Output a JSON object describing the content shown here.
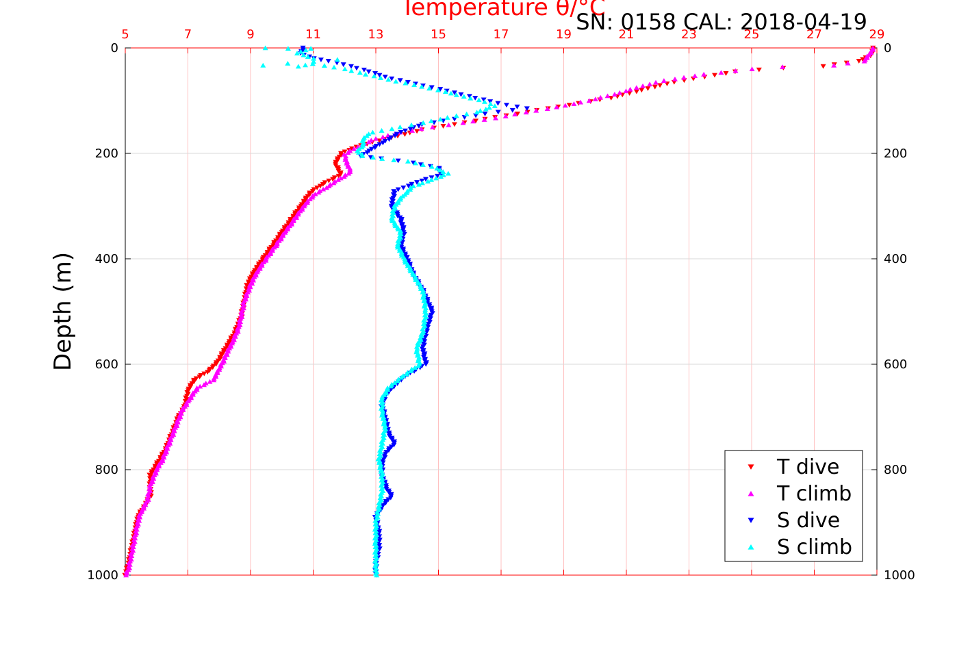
{
  "chart_data": {
    "type": "scatter",
    "title": "Temperature θ/°C",
    "subtitle": "SN: 0158  CAL: 2018-04-19",
    "xlabel": "Temperature θ/°C",
    "ylabel": "Depth (m)",
    "xlim": [
      5,
      29
    ],
    "ylim": [
      0,
      1000
    ],
    "y_reversed": true,
    "x_ticks": [
      5,
      7,
      9,
      11,
      13,
      15,
      17,
      19,
      21,
      23,
      25,
      27,
      29
    ],
    "y_ticks": [
      0,
      200,
      400,
      600,
      800,
      1000
    ],
    "grid": true,
    "legend_position": "bottom-right",
    "colors": {
      "axis_top": "#ff0000",
      "grid_x": "#ffc0c0",
      "grid_y": "#d9d9d9"
    },
    "series": [
      {
        "name": "T dive",
        "color": "#ff0000",
        "marker": "triangle-down",
        "points": [
          [
            28.9,
            0
          ],
          [
            28.8,
            15
          ],
          [
            28.4,
            25
          ],
          [
            27.3,
            35
          ],
          [
            26.0,
            38
          ],
          [
            24.5,
            45
          ],
          [
            23.5,
            55
          ],
          [
            22.5,
            65
          ],
          [
            21.5,
            80
          ],
          [
            20.5,
            95
          ],
          [
            19.5,
            105
          ],
          [
            18.5,
            115
          ],
          [
            17.5,
            125
          ],
          [
            16.5,
            135
          ],
          [
            15.5,
            145
          ],
          [
            14.5,
            155
          ],
          [
            13.5,
            170
          ],
          [
            12.5,
            185
          ],
          [
            11.9,
            200
          ],
          [
            11.7,
            220
          ],
          [
            11.9,
            240
          ],
          [
            11.5,
            252
          ],
          [
            11.2,
            262
          ],
          [
            10.9,
            275
          ],
          [
            10.6,
            300
          ],
          [
            10.3,
            325
          ],
          [
            10.0,
            350
          ],
          [
            9.7,
            375
          ],
          [
            9.4,
            400
          ],
          [
            9.1,
            425
          ],
          [
            8.9,
            450
          ],
          [
            8.8,
            480
          ],
          [
            8.7,
            510
          ],
          [
            8.5,
            540
          ],
          [
            8.3,
            560
          ],
          [
            8.1,
            580
          ],
          [
            7.9,
            600
          ],
          [
            7.6,
            615
          ],
          [
            7.2,
            630
          ],
          [
            7.0,
            650
          ],
          [
            6.9,
            680
          ],
          [
            6.7,
            700
          ],
          [
            6.5,
            730
          ],
          [
            6.3,
            760
          ],
          [
            6.0,
            790
          ],
          [
            5.8,
            810
          ],
          [
            5.8,
            830
          ],
          [
            5.8,
            850
          ],
          [
            5.6,
            870
          ],
          [
            5.4,
            890
          ],
          [
            5.3,
            920
          ],
          [
            5.2,
            950
          ],
          [
            5.1,
            980
          ],
          [
            5.0,
            1000
          ]
        ]
      },
      {
        "name": "T climb",
        "color": "#ff00ff",
        "marker": "triangle-up",
        "points": [
          [
            28.9,
            0
          ],
          [
            28.6,
            25
          ],
          [
            27.6,
            33
          ],
          [
            26.0,
            36
          ],
          [
            25.0,
            40
          ],
          [
            23.5,
            50
          ],
          [
            22.2,
            62
          ],
          [
            21.5,
            72
          ],
          [
            20.8,
            85
          ],
          [
            19.8,
            100
          ],
          [
            18.8,
            112
          ],
          [
            17.8,
            122
          ],
          [
            16.8,
            133
          ],
          [
            15.8,
            142
          ],
          [
            14.8,
            150
          ],
          [
            13.8,
            160
          ],
          [
            13.0,
            172
          ],
          [
            12.4,
            188
          ],
          [
            12.0,
            202
          ],
          [
            12.1,
            222
          ],
          [
            12.2,
            235
          ],
          [
            11.8,
            250
          ],
          [
            11.4,
            265
          ],
          [
            11.0,
            280
          ],
          [
            10.7,
            300
          ],
          [
            10.4,
            325
          ],
          [
            10.1,
            350
          ],
          [
            9.8,
            375
          ],
          [
            9.5,
            400
          ],
          [
            9.2,
            425
          ],
          [
            9.0,
            450
          ],
          [
            8.8,
            480
          ],
          [
            8.7,
            510
          ],
          [
            8.6,
            535
          ],
          [
            8.4,
            560
          ],
          [
            8.2,
            585
          ],
          [
            8.0,
            610
          ],
          [
            7.8,
            630
          ],
          [
            7.3,
            645
          ],
          [
            7.0,
            670
          ],
          [
            6.8,
            690
          ],
          [
            6.6,
            720
          ],
          [
            6.4,
            750
          ],
          [
            6.2,
            780
          ],
          [
            6.0,
            800
          ],
          [
            5.8,
            830
          ],
          [
            5.7,
            860
          ],
          [
            5.5,
            880
          ],
          [
            5.4,
            900
          ],
          [
            5.3,
            930
          ],
          [
            5.2,
            960
          ],
          [
            5.1,
            990
          ],
          [
            5.0,
            1000
          ]
        ]
      },
      {
        "name": "S dive",
        "color": "#0000ff",
        "marker": "triangle-down",
        "points": [
          [
            10.7,
            0
          ],
          [
            10.6,
            10
          ],
          [
            11.0,
            20
          ],
          [
            11.5,
            25
          ],
          [
            12.2,
            35
          ],
          [
            12.8,
            45
          ],
          [
            13.3,
            55
          ],
          [
            14.0,
            65
          ],
          [
            14.8,
            75
          ],
          [
            15.5,
            85
          ],
          [
            16.2,
            95
          ],
          [
            16.9,
            105
          ],
          [
            17.8,
            115
          ],
          [
            16.5,
            125
          ],
          [
            15.5,
            135
          ],
          [
            14.5,
            145
          ],
          [
            13.8,
            160
          ],
          [
            13.2,
            180
          ],
          [
            12.8,
            195
          ],
          [
            12.5,
            205
          ],
          [
            13.2,
            210
          ],
          [
            14.2,
            218
          ],
          [
            15.0,
            228
          ],
          [
            15.1,
            240
          ],
          [
            14.3,
            255
          ],
          [
            13.6,
            272
          ],
          [
            13.5,
            300
          ],
          [
            13.8,
            325
          ],
          [
            13.9,
            350
          ],
          [
            13.8,
            375
          ],
          [
            14.0,
            400
          ],
          [
            14.2,
            430
          ],
          [
            14.5,
            460
          ],
          [
            14.8,
            500
          ],
          [
            14.6,
            540
          ],
          [
            14.5,
            570
          ],
          [
            14.6,
            600
          ],
          [
            14.0,
            620
          ],
          [
            13.6,
            640
          ],
          [
            13.3,
            660
          ],
          [
            13.2,
            680
          ],
          [
            13.3,
            700
          ],
          [
            13.4,
            730
          ],
          [
            13.6,
            750
          ],
          [
            13.3,
            770
          ],
          [
            13.2,
            790
          ],
          [
            13.2,
            810
          ],
          [
            13.3,
            830
          ],
          [
            13.5,
            850
          ],
          [
            13.2,
            870
          ],
          [
            13.0,
            890
          ],
          [
            13.1,
            920
          ],
          [
            13.1,
            950
          ],
          [
            13.0,
            980
          ],
          [
            13.0,
            1000
          ]
        ]
      },
      {
        "name": "S climb",
        "color": "#00ffff",
        "marker": "triangle-up",
        "points": [
          [
            9.5,
            0
          ],
          [
            10.2,
            1
          ],
          [
            10.9,
            1
          ],
          [
            10.5,
            10
          ],
          [
            11.0,
            20
          ],
          [
            11.8,
            22
          ],
          [
            9.4,
            33
          ],
          [
            10.5,
            35
          ],
          [
            11.0,
            30
          ],
          [
            12.0,
            40
          ],
          [
            12.7,
            50
          ],
          [
            13.4,
            60
          ],
          [
            14.2,
            70
          ],
          [
            15.0,
            80
          ],
          [
            15.8,
            92
          ],
          [
            16.5,
            102
          ],
          [
            16.8,
            110
          ],
          [
            16.2,
            122
          ],
          [
            15.3,
            132
          ],
          [
            14.5,
            142
          ],
          [
            13.8,
            150
          ],
          [
            12.9,
            160
          ],
          [
            12.6,
            170
          ],
          [
            12.6,
            185
          ],
          [
            12.4,
            195
          ],
          [
            12.6,
            205
          ],
          [
            13.2,
            210
          ],
          [
            14.0,
            215
          ],
          [
            14.8,
            225
          ],
          [
            15.3,
            238
          ],
          [
            14.8,
            250
          ],
          [
            14.2,
            262
          ],
          [
            13.9,
            278
          ],
          [
            13.6,
            300
          ],
          [
            13.5,
            325
          ],
          [
            13.8,
            350
          ],
          [
            13.7,
            375
          ],
          [
            13.9,
            400
          ],
          [
            14.2,
            430
          ],
          [
            14.5,
            460
          ],
          [
            14.6,
            500
          ],
          [
            14.5,
            540
          ],
          [
            14.3,
            570
          ],
          [
            14.4,
            600
          ],
          [
            13.8,
            625
          ],
          [
            13.4,
            645
          ],
          [
            13.2,
            665
          ],
          [
            13.2,
            690
          ],
          [
            13.3,
            720
          ],
          [
            13.2,
            750
          ],
          [
            13.1,
            780
          ],
          [
            13.2,
            810
          ],
          [
            13.2,
            840
          ],
          [
            13.1,
            870
          ],
          [
            13.0,
            900
          ],
          [
            13.0,
            940
          ],
          [
            13.0,
            980
          ],
          [
            13.0,
            1000
          ]
        ]
      }
    ]
  }
}
